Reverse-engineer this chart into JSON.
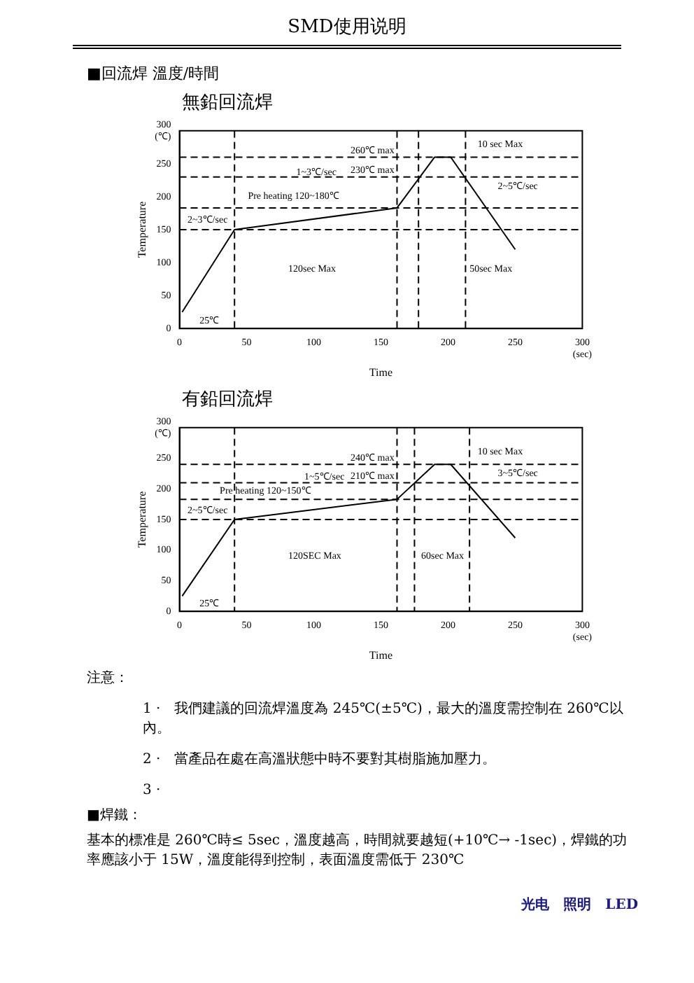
{
  "chart_data": [
    {
      "type": "line",
      "title": "無鉛回流焊",
      "xlabel": "Time",
      "ylabel": "Temperature",
      "x": [
        2,
        41,
        162,
        190,
        202,
        250
      ],
      "values": [
        25,
        150,
        183,
        260,
        260,
        120
      ],
      "color": "#000000",
      "xlim": [
        0,
        300
      ],
      "xticks": [
        0,
        50,
        100,
        150,
        200,
        250,
        {
          "value": 300,
          "label": "300 (sec)"
        }
      ],
      "ylim": [
        0,
        300
      ],
      "yticks": [
        0,
        50,
        100,
        150,
        200,
        250,
        {
          "value": 300,
          "label": "300 (℃)"
        }
      ],
      "grid": false,
      "legend": false,
      "marker": "none",
      "ref_lines": [
        {
          "axis": "y",
          "value": 260,
          "label": "260℃ max",
          "line_style": "dashed"
        },
        {
          "axis": "y",
          "value": 230,
          "label": "230℃ max",
          "line_style": "dashed"
        },
        {
          "axis": "y",
          "value": 183,
          "label": null,
          "line_style": "dashed"
        },
        {
          "axis": "y",
          "value": 150,
          "label": null,
          "line_style": "dashed"
        },
        {
          "axis": "x",
          "value": 41,
          "label": null,
          "line_style": "dashed"
        },
        {
          "axis": "x",
          "value": 162,
          "label": null,
          "line_style": "dashed"
        },
        {
          "axis": "x",
          "value": 178,
          "label": null,
          "line_style": "dashed"
        },
        {
          "axis": "x",
          "value": 213,
          "label": null,
          "line_style": "dashed"
        }
      ],
      "annotations": [
        "SMD使用说明",
        "■回流焊 溫度/時間",
        "10 sec Max",
        "1~3℃/sec",
        "Pre heating 120~180℃",
        "2~3℃/sec",
        "2~5℃/sec",
        "25℃",
        "120sec Max",
        "50sec Max"
      ]
    },
    {
      "type": "line",
      "title": "有鉛回流焊",
      "xlabel": "Time",
      "ylabel": "Temperature",
      "x": [
        2,
        41,
        162,
        190,
        202,
        250
      ],
      "values": [
        25,
        150,
        183,
        240,
        240,
        120
      ],
      "color": "#000000",
      "xlim": [
        0,
        300
      ],
      "xticks": [
        0,
        50,
        100,
        150,
        200,
        250,
        {
          "value": 300,
          "label": "300 (sec)"
        }
      ],
      "ylim": [
        0,
        300
      ],
      "yticks": [
        0,
        50,
        100,
        150,
        200,
        250,
        {
          "value": 300,
          "label": "300 (℃)"
        }
      ],
      "grid": false,
      "legend": false,
      "marker": "none",
      "ref_lines": [
        {
          "axis": "y",
          "value": 240,
          "label": "240℃ max",
          "line_style": "dashed"
        },
        {
          "axis": "y",
          "value": 210,
          "label": "210℃ max",
          "line_style": "dashed"
        },
        {
          "axis": "y",
          "value": 183,
          "label": null,
          "line_style": "dashed"
        },
        {
          "axis": "y",
          "value": 150,
          "label": null,
          "line_style": "dashed"
        },
        {
          "axis": "x",
          "value": 41,
          "label": null,
          "line_style": "dashed"
        },
        {
          "axis": "x",
          "value": 162,
          "label": null,
          "line_style": "dashed"
        },
        {
          "axis": "x",
          "value": 175,
          "label": null,
          "line_style": "dashed"
        },
        {
          "axis": "x",
          "value": 216,
          "label": null,
          "line_style": "dashed"
        }
      ],
      "annotations": [
        "10 sec Max",
        "1~5℃/sec",
        "Pre heating 120~150℃",
        "2~5℃/sec",
        "3~5℃/sec",
        "25℃",
        "120SEC Max",
        "60sec Max",
        "注意：",
        "1 ·　我們建議的回流焊溫度為 245℃(±5℃)，最大的溫度需控制在 260℃以內。",
        "2 ·　當產品在處在高溫狀態中時不要對其樹脂施加壓力。",
        "3 ·",
        "■焊鐵：",
        "基本的標准是 260℃時≤ 5sec，溫度越高，時間就要越短(+10℃→ -1sec)，焊鐵的功率應該小于 15W，溫度能得到控制，表面溫度需低于 230℃",
        "光电　照明　LED"
      ]
    }
  ]
}
